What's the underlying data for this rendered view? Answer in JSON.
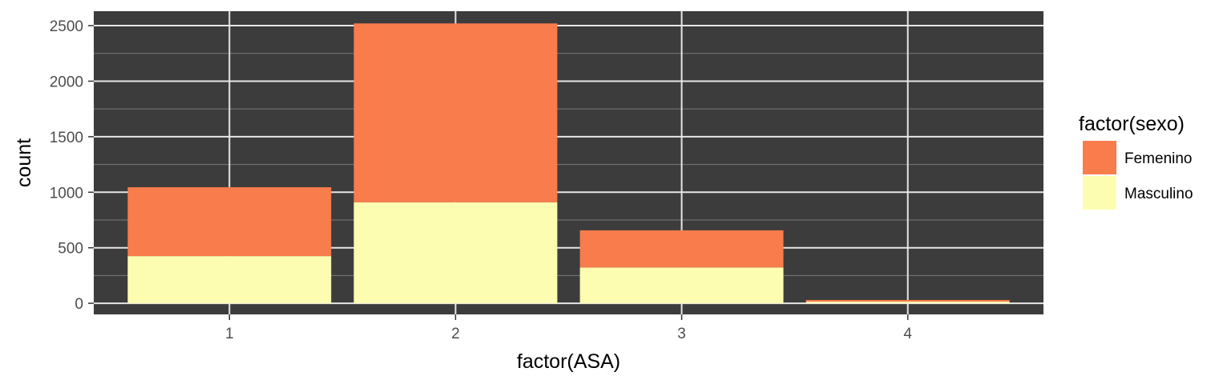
{
  "chart_data": {
    "type": "bar",
    "stacked": true,
    "categories": [
      "1",
      "2",
      "3",
      "4"
    ],
    "series": [
      {
        "name": "Femenino",
        "values": [
          620,
          1610,
          335,
          15
        ],
        "color": "#f87c4c"
      },
      {
        "name": "Masculino",
        "values": [
          425,
          910,
          322,
          15
        ],
        "color": "#fdfdb1"
      }
    ],
    "stack_order_bottom_to_top": [
      "Masculino",
      "Femenino"
    ],
    "xlabel": "factor(ASA)",
    "ylabel": "count",
    "ylim": [
      -100,
      2630
    ],
    "yticks": [
      0,
      500,
      1000,
      1500,
      2000,
      2500
    ],
    "legend": {
      "title": "factor(sexo)",
      "placement": "right"
    },
    "grid": true,
    "panel_background": "#3c3c3c",
    "grid_color": "#e6e6e6"
  }
}
